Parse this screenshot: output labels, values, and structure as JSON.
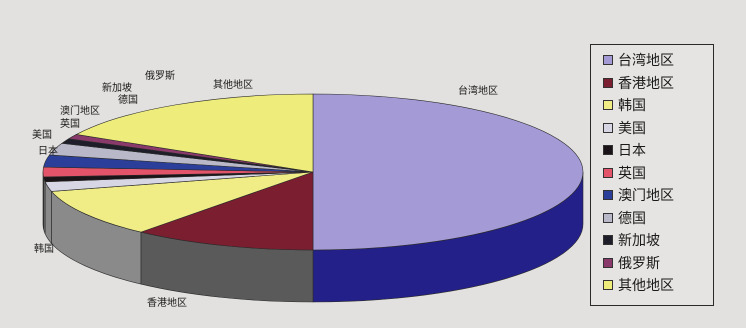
{
  "chart_data": {
    "type": "pie",
    "title": "",
    "legend_position": "right",
    "categories": [
      "台湾地区",
      "香港地区",
      "韩国",
      "美国",
      "日本",
      "英国",
      "澳门地区",
      "德国",
      "新加坡",
      "俄罗斯",
      "其他地区"
    ],
    "values": [
      50.0,
      11.0,
      10.0,
      2.0,
      1.0,
      2.0,
      2.5,
      2.5,
      1.0,
      1.0,
      17.0
    ],
    "colors": [
      "#a49ad6",
      "#7a1e30",
      "#f0ed86",
      "#d6d6e4",
      "#1a1418",
      "#e3546a",
      "#2b3f9a",
      "#b8b8c8",
      "#1e1e2a",
      "#8a3a6a",
      "#eeec7a"
    ],
    "side_colors": [
      "#23208a",
      "#5a5a5a",
      "#8a8a8a",
      "#8a8a8a",
      "#6a6a6a",
      "#8a8a8a",
      "#8a8a8a",
      "#8a8a8a",
      "#6a6a6a",
      "#8a8a8a",
      "#8a8a8a"
    ]
  }
}
